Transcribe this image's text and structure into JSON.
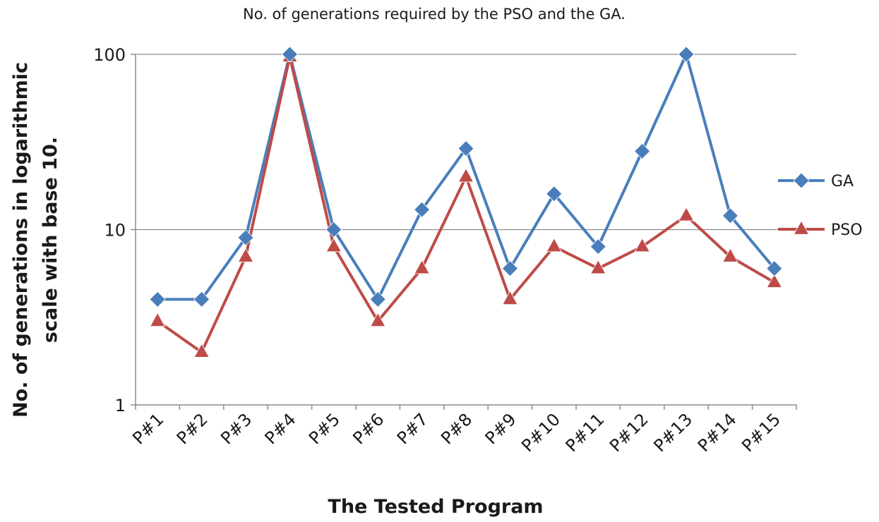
{
  "chart_data": {
    "type": "line",
    "title": "No. of generations required by the PSO and the GA.",
    "xlabel": "The Tested Program",
    "ylabel_lines": [
      "No. of generations in logarithmic",
      "scale with base 10."
    ],
    "yscale": "log10",
    "ylim": [
      1,
      100
    ],
    "yticks": [
      1,
      10,
      100
    ],
    "ytick_labels": [
      "1",
      "10",
      "100"
    ],
    "grid": "horizontal major gridlines",
    "legend_position": "right",
    "categories": [
      "P#1",
      "P#2",
      "P#3",
      "P#4",
      "P#5",
      "P#6",
      "P#7",
      "P#8",
      "P#9",
      "P#10",
      "P#11",
      "P#12",
      "P#13",
      "P#14",
      "P#15"
    ],
    "series": [
      {
        "name": "GA",
        "color": "#4a7ebb",
        "marker": "diamond",
        "values": [
          4,
          4,
          9,
          100,
          10,
          4,
          13,
          29,
          6,
          16,
          8,
          28,
          100,
          12,
          6
        ]
      },
      {
        "name": "PSO",
        "color": "#be4b48",
        "marker": "triangle",
        "values": [
          3,
          2,
          7,
          97,
          8,
          3,
          6,
          20,
          4,
          8,
          6,
          8,
          12,
          7,
          5
        ]
      }
    ]
  }
}
